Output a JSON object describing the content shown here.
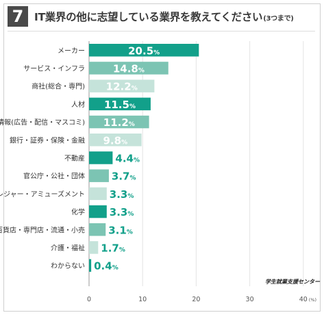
{
  "question": {
    "number": "7",
    "title": "IT業界の他に志望している業界を教えてください",
    "note": "(3つまで)"
  },
  "credit": "学生就業支援センター",
  "chart_data": {
    "type": "bar",
    "orientation": "horizontal",
    "title": "IT業界の他に志望している業界を教えてください",
    "unit": "(%)",
    "value_suffix": "%",
    "xlim": [
      0,
      40
    ],
    "xticks": [
      "0",
      "10",
      "20",
      "30",
      "40"
    ],
    "grid": true,
    "categories": [
      "メーカー",
      "サービス・インフラ",
      "商社(総合・専門)",
      "人材",
      "情報(広告・配信・マスコミ)",
      "銀行・証券・保険・金融",
      "不動産",
      "官公庁・公社・団体",
      "レジャー・アミューズメント",
      "化学",
      "百貨店・専門店・流通・小売",
      "介護・福祉",
      "わからない"
    ],
    "values": [
      20.5,
      14.8,
      12.2,
      11.5,
      11.2,
      9.8,
      4.4,
      3.7,
      3.3,
      3.3,
      3.1,
      1.7,
      0.4
    ],
    "value_labels": [
      "20.5",
      "14.8",
      "12.2",
      "11.5",
      "11.2",
      "9.8",
      "4.4",
      "3.7",
      "3.3",
      "3.3",
      "3.1",
      "1.7",
      "0.4"
    ],
    "colors": {
      "dark": "#12a08a",
      "medium": "#7cc4b3",
      "light": "#c5e3da",
      "label_dark": "#12a08a",
      "grid": "#e3e3e3",
      "axis": "#9a9a9a"
    },
    "color_pattern": [
      "dark",
      "medium",
      "light"
    ]
  }
}
